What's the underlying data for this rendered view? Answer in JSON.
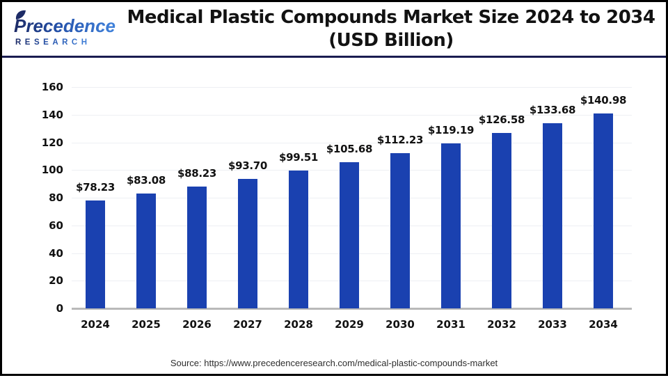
{
  "header": {
    "logo": {
      "brand": "Precedence",
      "sub": "RESEARCH"
    },
    "title_line1": "Medical Plastic Compounds Market Size 2024 to 2034",
    "title_line2": "(USD Billion)"
  },
  "chart_data": {
    "type": "bar",
    "title": "Medical Plastic Compounds Market Size 2024 to 2034 (USD Billion)",
    "categories": [
      "2024",
      "2025",
      "2026",
      "2027",
      "2028",
      "2029",
      "2030",
      "2031",
      "2032",
      "2033",
      "2034"
    ],
    "values": [
      78.23,
      83.08,
      88.23,
      93.7,
      99.51,
      105.68,
      112.23,
      119.19,
      126.58,
      133.68,
      140.98
    ],
    "value_labels": [
      "$78.23",
      "$83.08",
      "$88.23",
      "$93.70",
      "$99.51",
      "$105.68",
      "$112.23",
      "$119.19",
      "$126.58",
      "$133.68",
      "$140.98"
    ],
    "xlabel": "",
    "ylabel": "",
    "ylim": [
      0,
      160
    ],
    "yticks": [
      0,
      20,
      40,
      60,
      80,
      100,
      120,
      140,
      160
    ],
    "grid": true,
    "legend": false,
    "bar_color": "#1a41b0",
    "grid_color": "#edeff3",
    "axis_color": "#b9b9b9"
  },
  "footer": {
    "source": "Source: https://www.precedenceresearch.com/medical-plastic-compounds-market"
  },
  "colors": {
    "bar": "#1a41b0",
    "header_divider": "#191c50",
    "logo_navy": "#1d2b66",
    "logo_blue": "#4183dc",
    "frame_border": "#000000"
  }
}
